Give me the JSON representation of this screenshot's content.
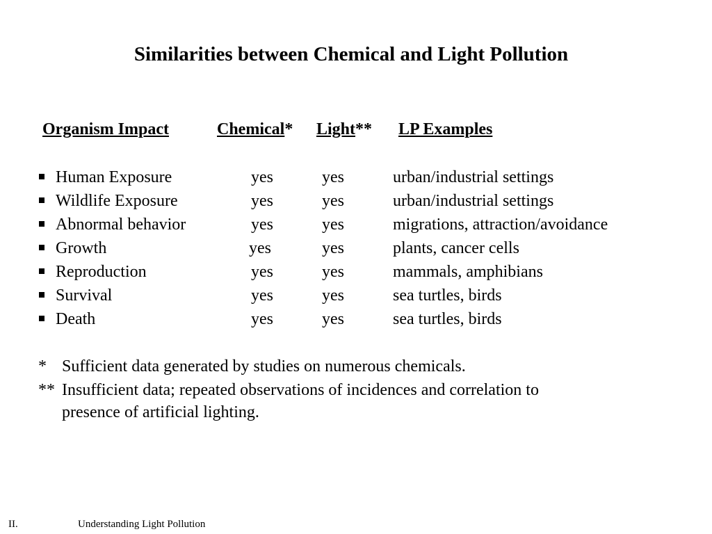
{
  "slide": {
    "title": "Similarities between Chemical and Light Pollution",
    "headers": {
      "organism_impact": "Organism Impact",
      "chemical": "Chemical",
      "chemical_mark": "*",
      "light": "Light",
      "light_mark": "**",
      "lp_examples": "LP Examples"
    },
    "rows": [
      {
        "impact": "Human Exposure",
        "chemical": "yes",
        "light": "yes",
        "examples": "urban/industrial settings"
      },
      {
        "impact": "Wildlife Exposure",
        "chemical": "yes",
        "light": "yes",
        "examples": "urban/industrial settings"
      },
      {
        "impact": "Abnormal behavior",
        "chemical": "yes",
        "light": "yes",
        "examples": "migrations, attraction/avoidance"
      },
      {
        "impact": "Growth",
        "chemical": "yes",
        "light": "yes",
        "examples": "plants, cancer cells"
      },
      {
        "impact": "Reproduction",
        "chemical": "yes",
        "light": "yes",
        "examples": "mammals, amphibians"
      },
      {
        "impact": "Survival",
        "chemical": "yes",
        "light": "yes",
        "examples": "sea turtles, birds"
      },
      {
        "impact": "Death",
        "chemical": "yes",
        "light": "yes",
        "examples": "sea turtles, birds"
      }
    ],
    "notes": {
      "note1_marker": "*",
      "note1_text": "Sufficient data generated by studies on numerous chemicals.",
      "note2_marker": "**",
      "note2_line1": "Insufficient data; repeated observations of incidences and correlation to",
      "note2_line2": "presence of artificial lighting."
    },
    "footer": {
      "section": "II.",
      "label": "Understanding Light Pollution"
    }
  }
}
